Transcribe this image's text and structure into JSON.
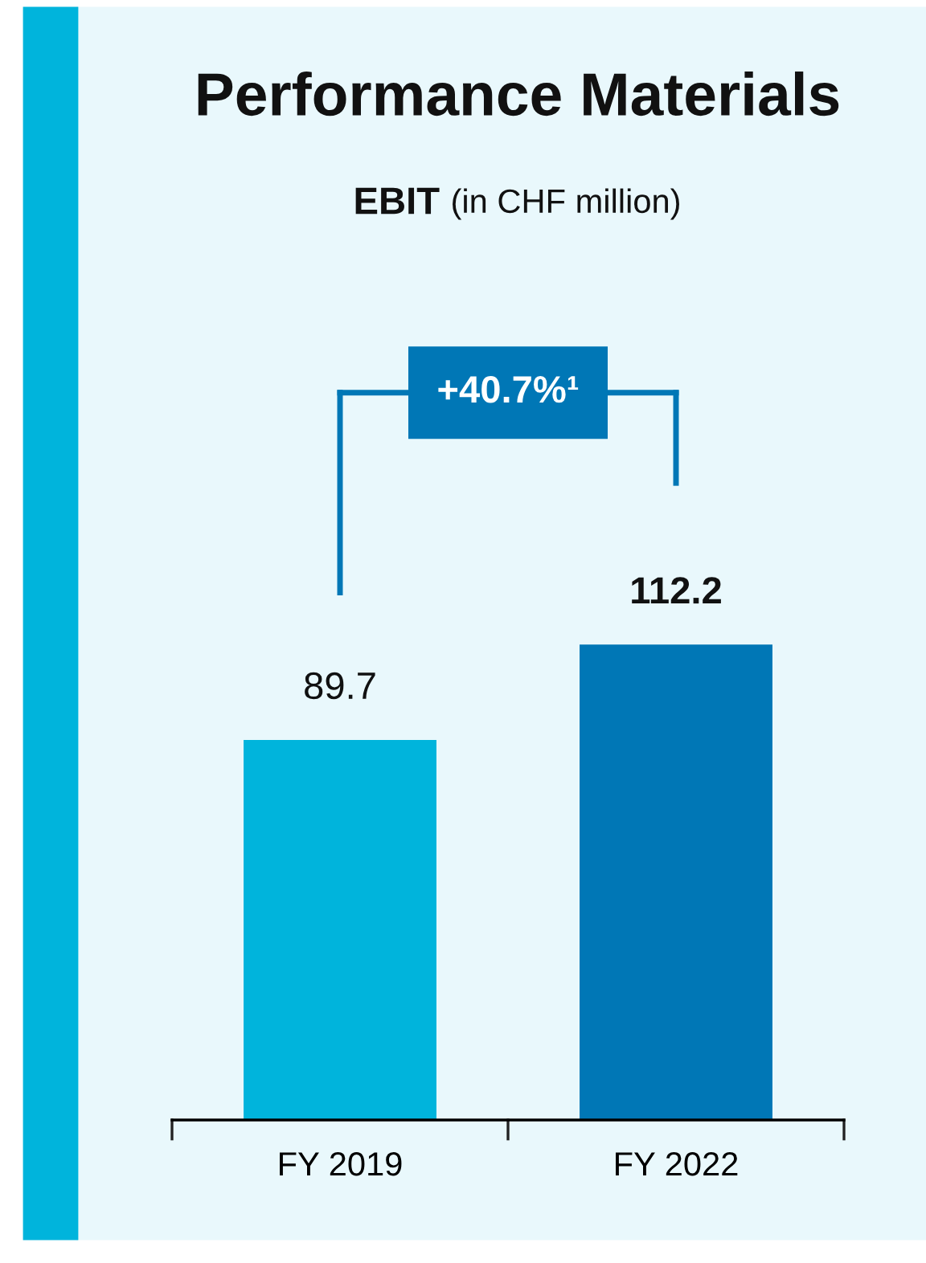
{
  "chart_data": {
    "type": "bar",
    "title": "Performance Materials",
    "subtitle": "EBIT (in CHF million)",
    "categories": [
      "FY 2019",
      "FY 2022"
    ],
    "values": [
      89.7,
      112.2
    ],
    "colors": [
      "#00b4dc",
      "#0077b6"
    ],
    "data_labels": true,
    "grid": false,
    "annotations": [
      "+40.7%¹"
    ]
  }
}
